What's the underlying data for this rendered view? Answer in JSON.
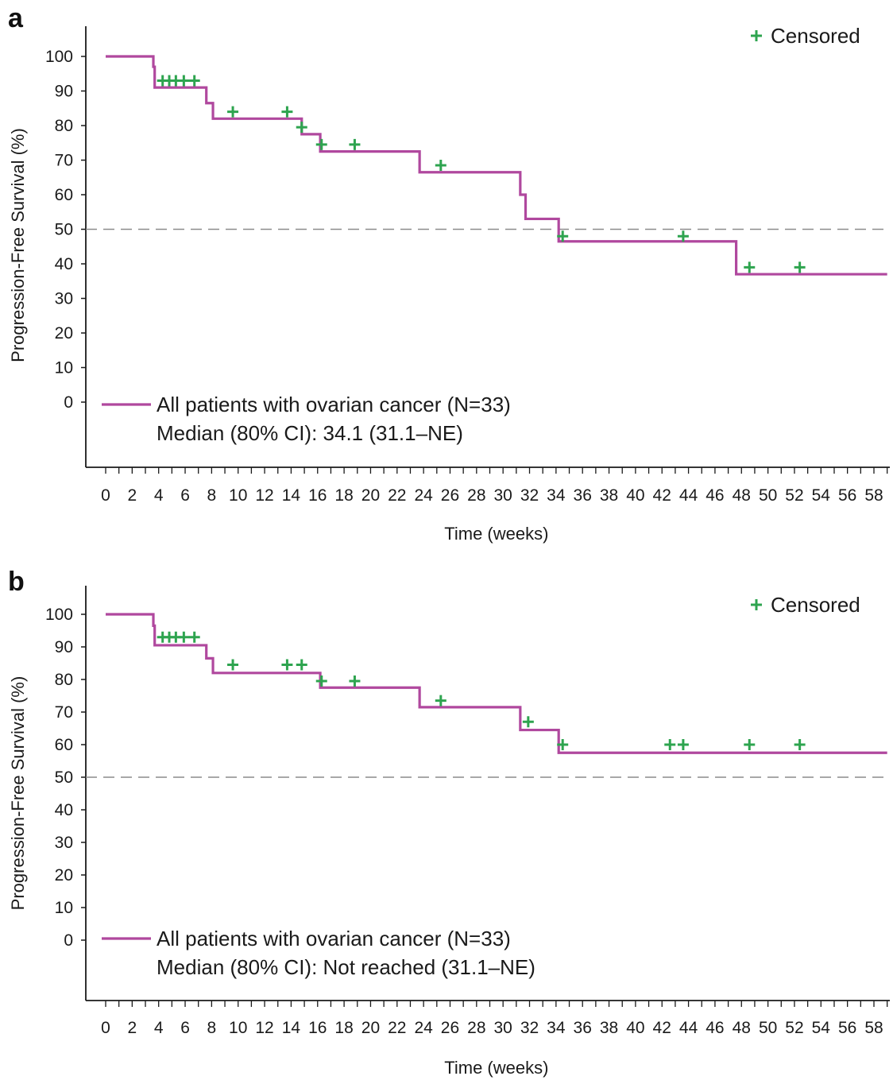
{
  "colors": {
    "curve": "#b0489e",
    "censor": "#2ea44f",
    "reference_line": "#8c8c8c",
    "axis": "#1a1a1a"
  },
  "chart_data": [
    {
      "panel": "a",
      "type": "line",
      "step": true,
      "ylabel": "Progression-Free Survival (%)",
      "xlabel": "Time (weeks)",
      "xlim": [
        0,
        59
      ],
      "ylim": [
        0,
        100
      ],
      "x_ticks": [
        0,
        2,
        4,
        6,
        8,
        10,
        12,
        14,
        16,
        18,
        20,
        22,
        24,
        26,
        28,
        30,
        32,
        34,
        36,
        38,
        40,
        42,
        44,
        46,
        48,
        50,
        52,
        54,
        56,
        58
      ],
      "y_ticks": [
        0,
        10,
        20,
        30,
        40,
        50,
        60,
        70,
        80,
        90,
        100
      ],
      "reference_line_y": 50,
      "series": [
        {
          "name": "All patients with ovarian cancer (N=33)",
          "x": [
            0,
            3.6,
            3.7,
            7.6,
            8.1,
            14.8,
            16.2,
            23.7,
            31.3,
            31.7,
            34.2,
            47.6,
            59
          ],
          "y": [
            100,
            97,
            91,
            86.5,
            82,
            77.5,
            72.5,
            66.5,
            60,
            53,
            46.5,
            37,
            37
          ]
        }
      ],
      "censored": {
        "label": "Censored",
        "x": [
          4.3,
          4.8,
          5.3,
          5.9,
          6.7,
          9.6,
          13.7,
          14.8,
          16.3,
          18.8,
          25.3,
          34.5,
          43.6,
          48.6,
          52.4
        ],
        "y": [
          93,
          93,
          93,
          93,
          93,
          84,
          84,
          79.5,
          74.5,
          74.5,
          68.5,
          48,
          48,
          39,
          39
        ]
      },
      "legend": {
        "line1": "All patients with ovarian cancer (N=33)",
        "line2": "Median (80% CI): 34.1 (31.1–NE)"
      }
    },
    {
      "panel": "b",
      "type": "line",
      "step": true,
      "ylabel": "Progression-Free Survival (%)",
      "xlabel": "Time (weeks)",
      "xlim": [
        0,
        59
      ],
      "ylim": [
        0,
        100
      ],
      "x_ticks": [
        0,
        2,
        4,
        6,
        8,
        10,
        12,
        14,
        16,
        18,
        20,
        22,
        24,
        26,
        28,
        30,
        32,
        34,
        36,
        38,
        40,
        42,
        44,
        46,
        48,
        50,
        52,
        54,
        56,
        58
      ],
      "y_ticks": [
        0,
        10,
        20,
        30,
        40,
        50,
        60,
        70,
        80,
        90,
        100
      ],
      "reference_line_y": 50,
      "series": [
        {
          "name": "All patients with ovarian cancer (N=33)",
          "x": [
            0,
            3.6,
            3.7,
            7.6,
            8.1,
            16.2,
            23.7,
            31.3,
            34.2,
            59
          ],
          "y": [
            100,
            96.5,
            90.5,
            86.5,
            82,
            77.5,
            71.5,
            64.5,
            57.5,
            57.5
          ]
        }
      ],
      "censored": {
        "label": "Censored",
        "x": [
          4.3,
          4.8,
          5.3,
          5.9,
          6.7,
          9.6,
          13.7,
          14.8,
          16.3,
          18.8,
          25.3,
          31.9,
          34.5,
          42.6,
          43.6,
          48.6,
          52.4
        ],
        "y": [
          93,
          93,
          93,
          93,
          93,
          84.5,
          84.5,
          84.5,
          79.5,
          79.5,
          73.5,
          67,
          60,
          60,
          60,
          60,
          60
        ]
      },
      "legend": {
        "line1": "All patients with ovarian cancer (N=33)",
        "line2": "Median (80% CI): Not reached (31.1–NE)"
      }
    }
  ]
}
